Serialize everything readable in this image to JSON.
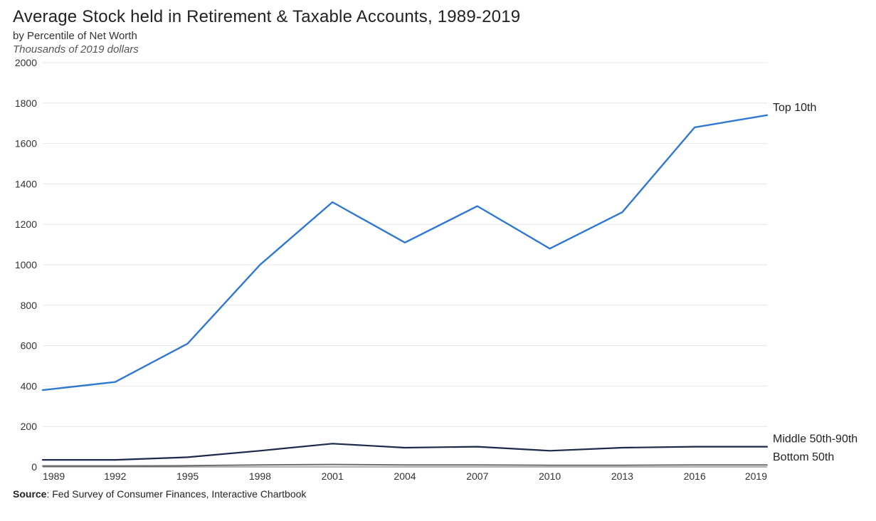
{
  "header": {
    "title": "Average Stock held in Retirement & Taxable Accounts, 1989-2019",
    "subtitle": "by Percentile of Net Worth",
    "ylabel": "Thousands of 2019 dollars"
  },
  "chart": {
    "type": "line",
    "background_color": "#ffffff",
    "grid_color": "#e6e6e6",
    "axis_color": "#666666",
    "tick_label_fontsize": 14,
    "series_label_fontsize": 16,
    "x": {
      "ticks": [
        1989,
        1992,
        1995,
        1998,
        2001,
        2004,
        2007,
        2010,
        2013,
        2016,
        2019
      ],
      "lim": [
        1989,
        2019
      ]
    },
    "y": {
      "ticks": [
        0,
        200,
        400,
        600,
        800,
        1000,
        1200,
        1400,
        1600,
        1800,
        2000
      ],
      "lim": [
        0,
        2000
      ]
    },
    "series": [
      {
        "name": "Top 10th",
        "label": "Top 10th",
        "color": "#2f78d1",
        "line_width": 2.4,
        "x": [
          1989,
          1992,
          1995,
          1998,
          2001,
          2004,
          2007,
          2010,
          2013,
          2016,
          2019
        ],
        "y": [
          380,
          420,
          610,
          1000,
          1310,
          1110,
          1290,
          1080,
          1260,
          1680,
          1740
        ]
      },
      {
        "name": "Middle 50th-90th",
        "label": "Middle 50th-90th",
        "color": "#1b2a4a",
        "line_width": 2.2,
        "x": [
          1989,
          1992,
          1995,
          1998,
          2001,
          2004,
          2007,
          2010,
          2013,
          2016,
          2019
        ],
        "y": [
          35,
          35,
          48,
          80,
          115,
          95,
          100,
          80,
          95,
          100,
          100
        ]
      },
      {
        "name": "Bottom 50th",
        "label": "Bottom 50th",
        "color": "#6d6d6d",
        "line_width": 2.0,
        "x": [
          1989,
          1992,
          1995,
          1998,
          2001,
          2004,
          2007,
          2010,
          2013,
          2016,
          2019
        ],
        "y": [
          5,
          5,
          6,
          10,
          12,
          10,
          10,
          8,
          8,
          10,
          10
        ]
      }
    ]
  },
  "footer": {
    "source_prefix": "Source",
    "source_text": ": Fed Survey of Consumer Finances, Interactive Chartbook"
  }
}
